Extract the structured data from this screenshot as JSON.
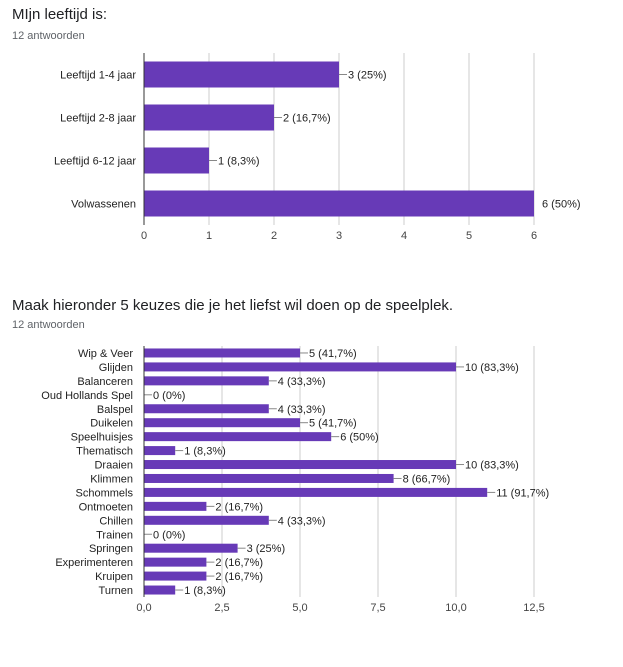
{
  "colors": {
    "bar": "#673ab7",
    "axis": "#333333",
    "grid": "#cccccc"
  },
  "chart_data": [
    {
      "type": "bar",
      "orientation": "horizontal",
      "title": "MIjn leeftijd is:",
      "subtitle": "12 antwoorden",
      "categories": [
        "Leeftijd 1-4 jaar",
        "Leeftijd 2-8 jaar",
        "Leeftijd 6-12 jaar",
        "Volwassenen"
      ],
      "values": [
        3,
        2,
        1,
        6
      ],
      "data_labels": [
        "3 (25%)",
        "2 (16,7%)",
        "1 (8,3%)",
        "6 (50%)"
      ],
      "xlim": [
        0,
        6
      ],
      "ticks": [
        0,
        1,
        2,
        3,
        4,
        5,
        6
      ],
      "tick_labels": [
        "0",
        "1",
        "2",
        "3",
        "4",
        "5",
        "6"
      ],
      "grid": true,
      "legend": "none"
    },
    {
      "type": "bar",
      "orientation": "horizontal",
      "title": "Maak hieronder 5 keuzes die je het liefst wil doen op de speelplek.",
      "subtitle": "12 antwoorden",
      "categories": [
        "Wip & Veer",
        "Glijden",
        "Balanceren",
        "Oud Hollands Spel",
        "Balspel",
        "Duikelen",
        "Speelhuisjes",
        "Thematisch",
        "Draaien",
        "Klimmen",
        "Schommels",
        "Ontmoeten",
        "Chillen",
        "Trainen",
        "Springen",
        "Experimenteren",
        "Kruipen",
        "Turnen"
      ],
      "values": [
        5,
        10,
        4,
        0,
        4,
        5,
        6,
        1,
        10,
        8,
        11,
        2,
        4,
        0,
        3,
        2,
        2,
        1
      ],
      "data_labels": [
        "5 (41,7%)",
        "10 (83,3%)",
        "4 (33,3%)",
        "0 (0%)",
        "4 (33,3%)",
        "5 (41,7%)",
        "6 (50%)",
        "1 (8,3%)",
        "10 (83,3%)",
        "8 (66,7%)",
        "11 (91,7%)",
        "2 (16,7%)",
        "4 (33,3%)",
        "0 (0%)",
        "3 (25%)",
        "2 (16,7%)",
        "2 (16,7%)",
        "1 (8,3%)"
      ],
      "xlim": [
        0,
        12.5
      ],
      "ticks": [
        0,
        2.5,
        5,
        7.5,
        10,
        12.5
      ],
      "tick_labels": [
        "0,0",
        "2,5",
        "5,0",
        "7,5",
        "10,0",
        "12,5"
      ],
      "grid": true,
      "legend": "none"
    }
  ]
}
